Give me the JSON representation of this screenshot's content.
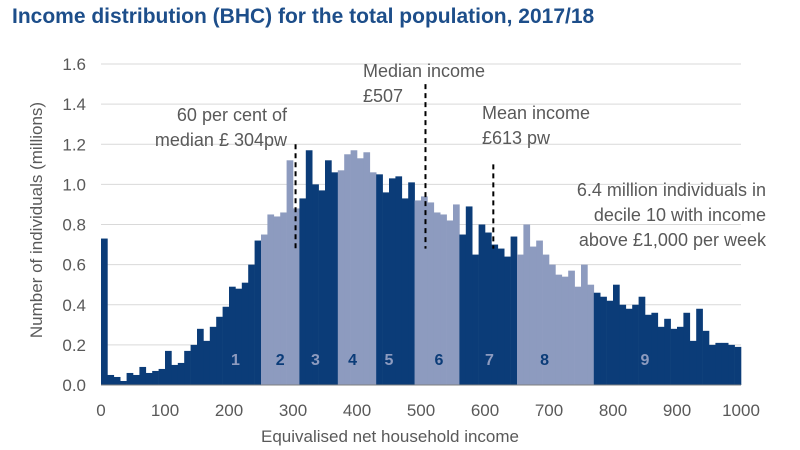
{
  "chart_data": {
    "type": "bar",
    "title": "Income distribution (BHC) for the total population, 2017/18",
    "xlabel": "Equivalised net household income",
    "ylabel": "Number of individuals (millions)",
    "xlim": [
      0,
      1000
    ],
    "ylim": [
      0,
      1.6
    ],
    "bin_width": 10,
    "x_ticks": [
      "0",
      "100",
      "200",
      "300",
      "400",
      "500",
      "600",
      "700",
      "800",
      "900",
      "1000"
    ],
    "y_ticks": [
      "0.0",
      "0.2",
      "0.4",
      "0.6",
      "0.8",
      "1.0",
      "1.2",
      "1.4",
      "1.6"
    ],
    "bins_start": [
      0,
      10,
      20,
      30,
      40,
      50,
      60,
      70,
      80,
      90,
      100,
      110,
      120,
      130,
      140,
      150,
      160,
      170,
      180,
      190,
      200,
      210,
      220,
      230,
      240,
      250,
      260,
      270,
      280,
      290,
      300,
      310,
      320,
      330,
      340,
      350,
      360,
      370,
      380,
      390,
      400,
      410,
      420,
      430,
      440,
      450,
      460,
      470,
      480,
      490,
      500,
      510,
      520,
      530,
      540,
      550,
      560,
      570,
      580,
      590,
      600,
      610,
      620,
      630,
      640,
      650,
      660,
      670,
      680,
      690,
      700,
      710,
      720,
      730,
      740,
      750,
      760,
      770,
      780,
      790,
      800,
      810,
      820,
      830,
      840,
      850,
      860,
      870,
      880,
      890,
      900,
      910,
      920,
      930,
      940,
      950,
      960,
      970,
      980,
      990
    ],
    "values": [
      0.73,
      0.05,
      0.04,
      0.02,
      0.06,
      0.05,
      0.09,
      0.06,
      0.07,
      0.08,
      0.17,
      0.1,
      0.11,
      0.17,
      0.2,
      0.28,
      0.22,
      0.29,
      0.34,
      0.39,
      0.49,
      0.48,
      0.51,
      0.6,
      0.72,
      0.75,
      0.85,
      0.84,
      0.86,
      1.12,
      0.88,
      0.93,
      1.17,
      1.0,
      0.97,
      1.12,
      1.06,
      1.07,
      1.15,
      1.17,
      1.13,
      1.16,
      1.06,
      1.05,
      0.96,
      1.03,
      1.04,
      0.93,
      1.01,
      0.92,
      0.94,
      0.91,
      0.86,
      0.85,
      0.82,
      0.9,
      0.75,
      0.89,
      0.65,
      0.8,
      0.76,
      0.7,
      0.68,
      0.64,
      0.74,
      0.65,
      0.8,
      0.69,
      0.72,
      0.65,
      0.6,
      0.55,
      0.54,
      0.57,
      0.49,
      0.6,
      0.5,
      0.46,
      0.44,
      0.42,
      0.5,
      0.4,
      0.38,
      0.4,
      0.44,
      0.35,
      0.36,
      0.29,
      0.33,
      0.28,
      0.29,
      0.36,
      0.22,
      0.38,
      0.27,
      0.2,
      0.21,
      0.21,
      0.2,
      0.19
    ],
    "decile_of_bin": [
      1,
      1,
      1,
      1,
      1,
      1,
      1,
      1,
      1,
      1,
      1,
      1,
      1,
      1,
      1,
      1,
      1,
      1,
      1,
      1,
      1,
      1,
      1,
      1,
      1,
      2,
      2,
      2,
      2,
      2,
      2,
      3,
      3,
      3,
      3,
      3,
      3,
      4,
      4,
      4,
      4,
      4,
      4,
      5,
      5,
      5,
      5,
      5,
      5,
      6,
      6,
      6,
      6,
      6,
      6,
      6,
      7,
      7,
      7,
      7,
      7,
      7,
      7,
      7,
      7,
      8,
      8,
      8,
      8,
      8,
      8,
      8,
      8,
      8,
      8,
      8,
      8,
      9,
      9,
      9,
      9,
      9,
      9,
      9,
      9,
      9,
      9,
      9,
      9,
      9,
      9,
      9,
      9,
      9,
      9,
      9,
      9,
      9,
      9,
      9
    ],
    "deciles": [
      {
        "label": "1",
        "x": 210
      },
      {
        "label": "2",
        "x": 280
      },
      {
        "label": "3",
        "x": 335
      },
      {
        "label": "4",
        "x": 393
      },
      {
        "label": "5",
        "x": 450
      },
      {
        "label": "6",
        "x": 528
      },
      {
        "label": "7",
        "x": 607
      },
      {
        "label": "8",
        "x": 693
      },
      {
        "label": "9",
        "x": 850
      }
    ],
    "markers": [
      {
        "name": "poverty-line",
        "x": 304,
        "y_top": 1.2
      },
      {
        "name": "median",
        "x": 507,
        "y_top": 1.5
      },
      {
        "name": "mean",
        "x": 613,
        "y_top": 1.1
      }
    ],
    "annotations": {
      "poverty": [
        "60 per cent of",
        "median £ 304pw"
      ],
      "median": [
        "Median income",
        "£507"
      ],
      "mean": [
        "Mean income",
        "£613 pw"
      ],
      "decile10": [
        "6.4 million individuals in",
        "decile 10 with income",
        "above £1,000 per week"
      ]
    },
    "colors": {
      "dark": "#0b3c78",
      "light": "#8d9bbf",
      "decile_label_on_dark": "#8d9bbf",
      "decile_label_on_light": "#0b3c78",
      "title": "#1d4e8a",
      "grid": "#d9d9d9",
      "text": "#595959"
    }
  }
}
